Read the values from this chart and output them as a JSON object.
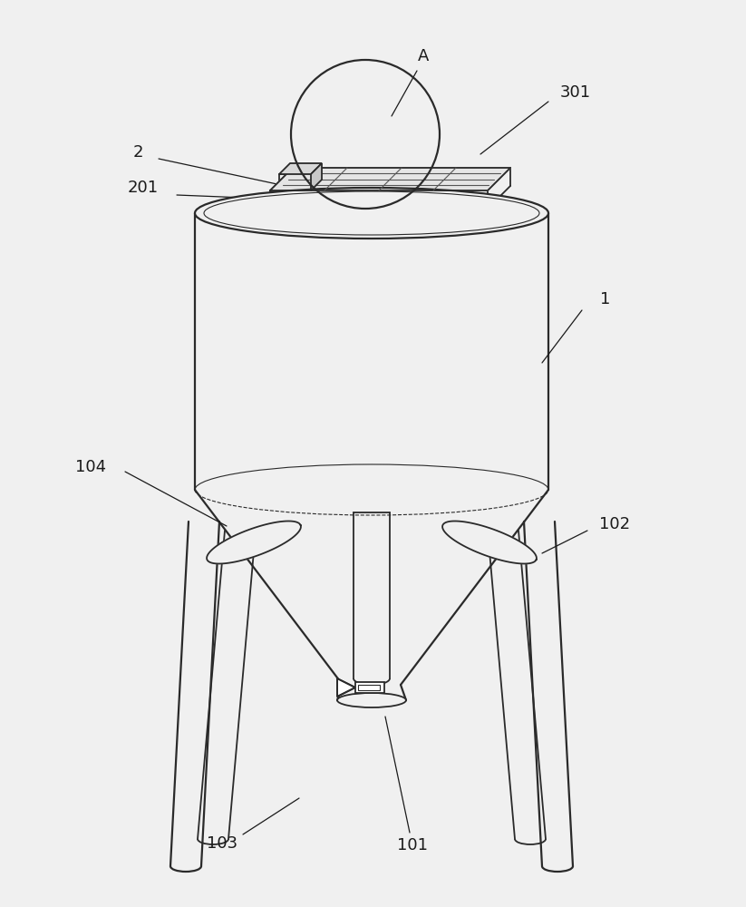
{
  "bg_color": "#f0f0f0",
  "line_color": "#2a2a2a",
  "label_color": "#1a1a1a",
  "lw": 1.3,
  "lw_thin": 0.8,
  "lw_thick": 1.6,
  "font_size": 13
}
